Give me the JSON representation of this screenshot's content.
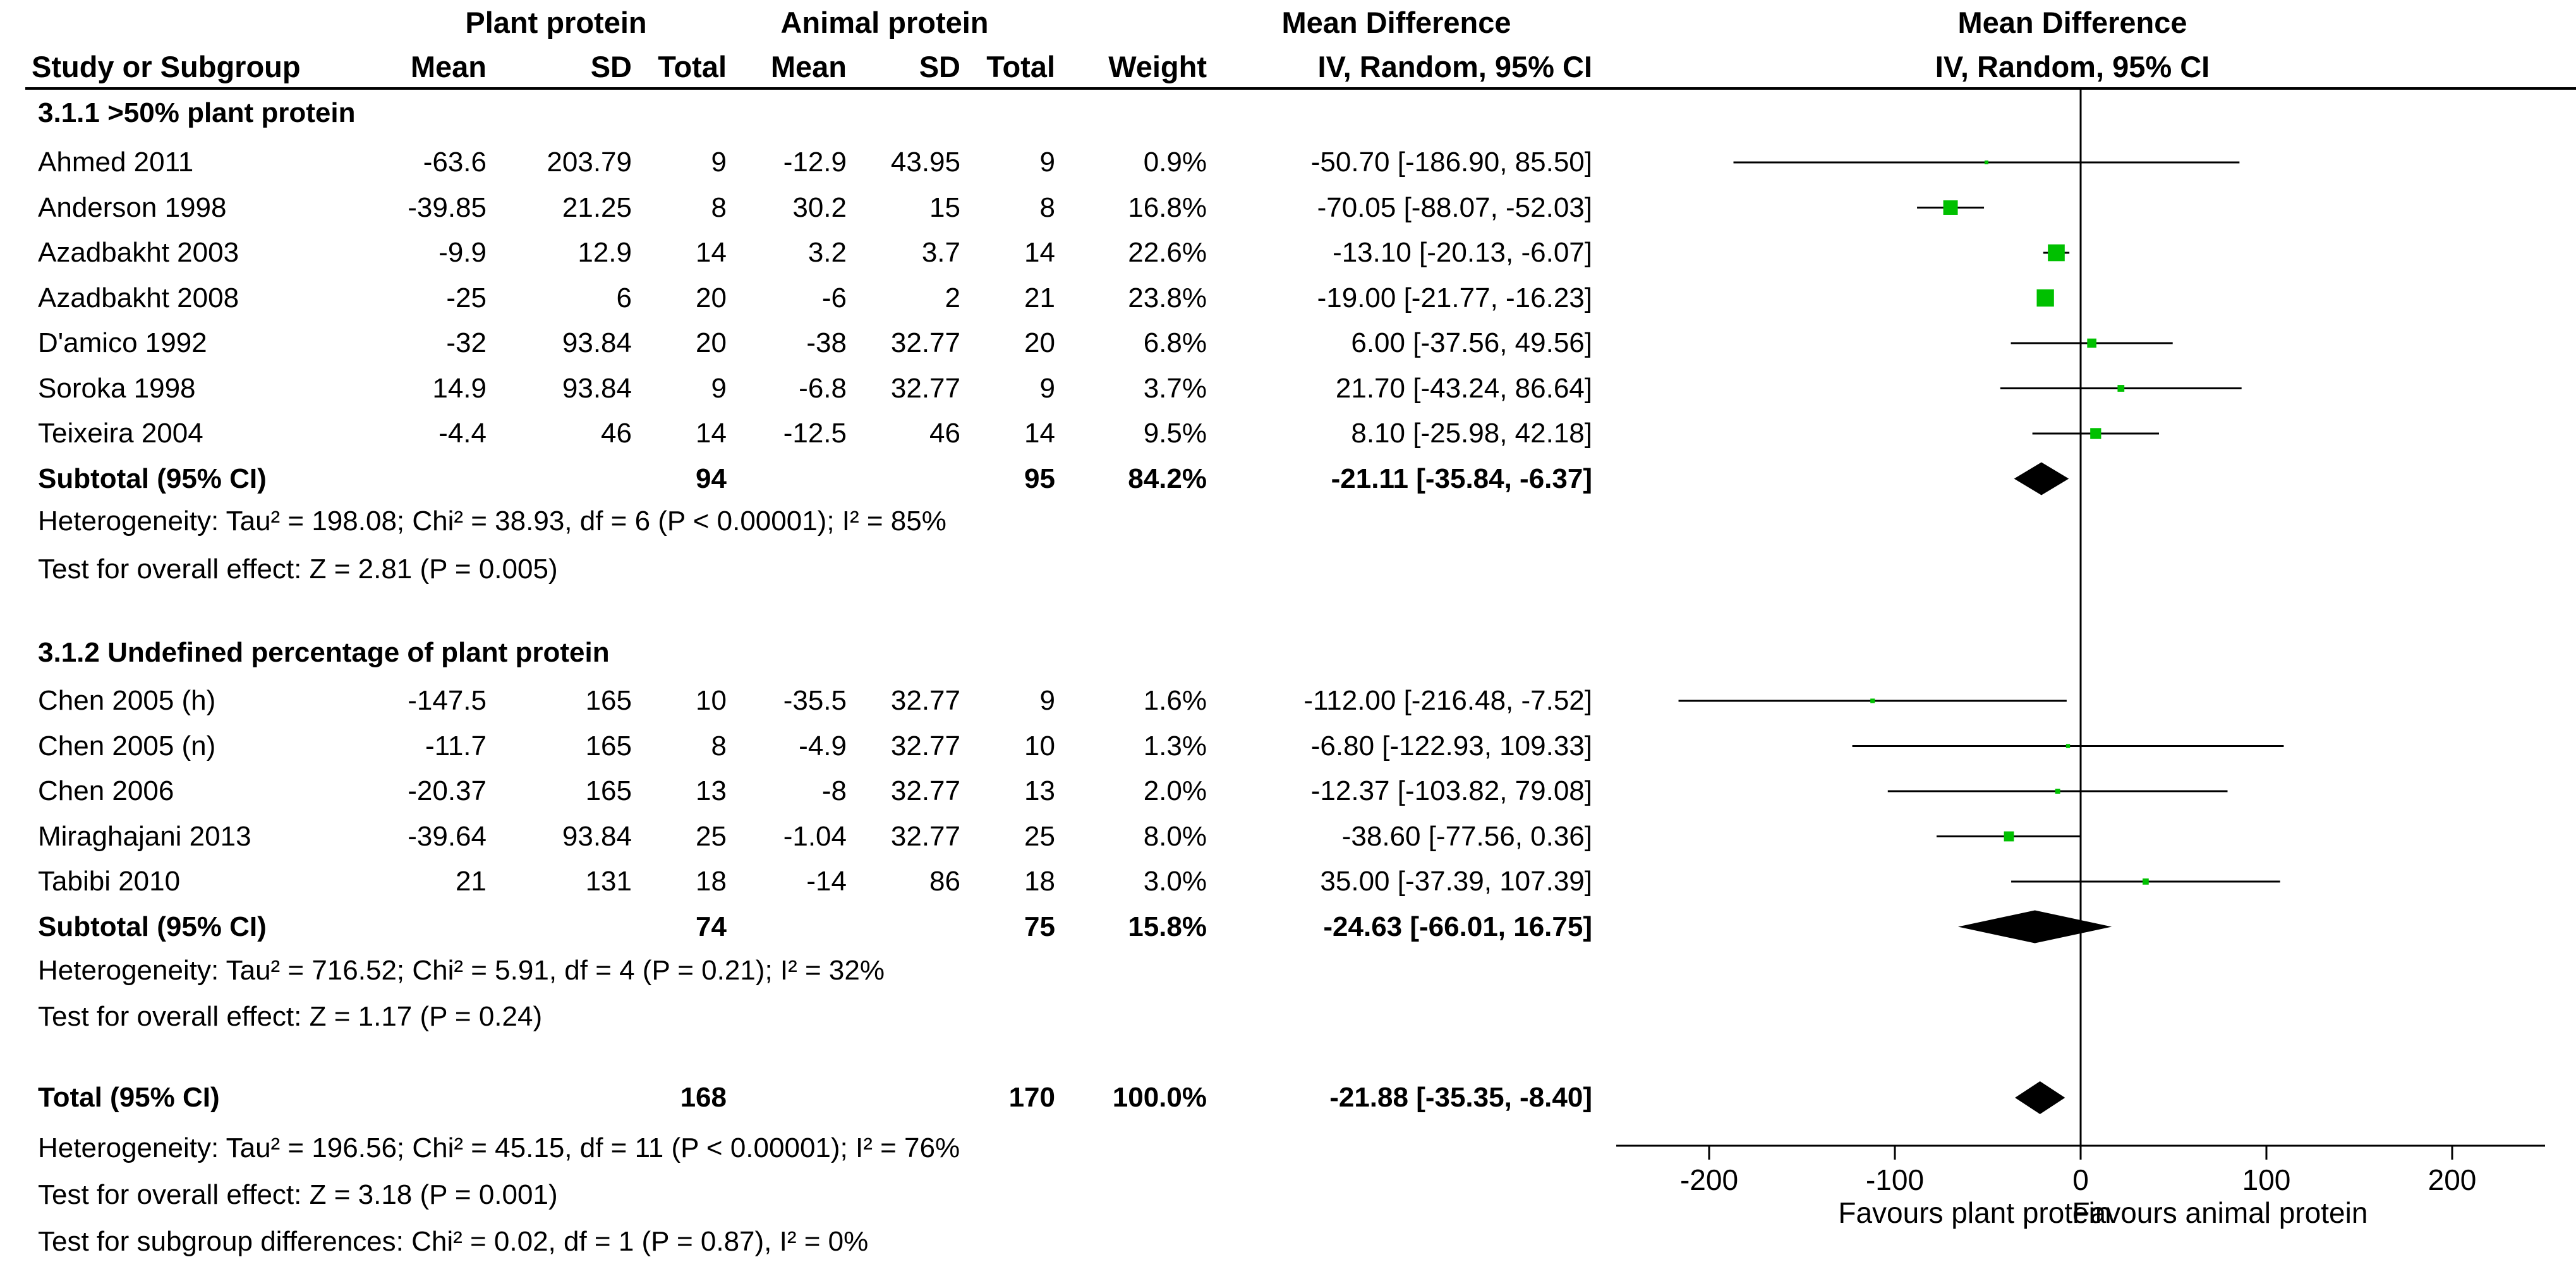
{
  "headers": {
    "group_plant": "Plant protein",
    "group_animal": "Animal protein",
    "group_md": "Mean Difference",
    "plot_title": "Mean Difference",
    "plot_method": "IV, Random, 95% CI",
    "study": "Study or Subgroup",
    "mean": "Mean",
    "sd": "SD",
    "total": "Total",
    "weight": "Weight",
    "md_method": "IV, Random, 95% CI"
  },
  "subgroups": [
    {
      "title": "3.1.1 >50% plant protein",
      "studies": [
        {
          "study": "Ahmed 2011",
          "pm": "-63.6",
          "psd": "203.79",
          "pn": "9",
          "am": "-12.9",
          "asd": "43.95",
          "an": "9",
          "weight": "0.9%",
          "ci": "-50.70 [-186.90, 85.50]"
        },
        {
          "study": "Anderson 1998",
          "pm": "-39.85",
          "psd": "21.25",
          "pn": "8",
          "am": "30.2",
          "asd": "15",
          "an": "8",
          "weight": "16.8%",
          "ci": "-70.05 [-88.07, -52.03]"
        },
        {
          "study": "Azadbakht 2003",
          "pm": "-9.9",
          "psd": "12.9",
          "pn": "14",
          "am": "3.2",
          "asd": "3.7",
          "an": "14",
          "weight": "22.6%",
          "ci": "-13.10 [-20.13, -6.07]"
        },
        {
          "study": "Azadbakht 2008",
          "pm": "-25",
          "psd": "6",
          "pn": "20",
          "am": "-6",
          "asd": "2",
          "an": "21",
          "weight": "23.8%",
          "ci": "-19.00 [-21.77, -16.23]"
        },
        {
          "study": "D'amico 1992",
          "pm": "-32",
          "psd": "93.84",
          "pn": "20",
          "am": "-38",
          "asd": "32.77",
          "an": "20",
          "weight": "6.8%",
          "ci": "6.00 [-37.56, 49.56]"
        },
        {
          "study": "Soroka 1998",
          "pm": "14.9",
          "psd": "93.84",
          "pn": "9",
          "am": "-6.8",
          "asd": "32.77",
          "an": "9",
          "weight": "3.7%",
          "ci": "21.70 [-43.24, 86.64]"
        },
        {
          "study": "Teixeira 2004",
          "pm": "-4.4",
          "psd": "46",
          "pn": "14",
          "am": "-12.5",
          "asd": "46",
          "an": "14",
          "weight": "9.5%",
          "ci": "8.10 [-25.98, 42.18]"
        }
      ],
      "subtotal": {
        "label": "Subtotal (95% CI)",
        "pn": "94",
        "an": "95",
        "weight": "84.2%",
        "ci": "-21.11 [-35.84, -6.37]"
      },
      "heterogeneity": "Heterogeneity: Tau² = 198.08; Chi² = 38.93, df = 6 (P < 0.00001); I² = 85%",
      "overall": "Test for overall effect: Z = 2.81 (P = 0.005)"
    },
    {
      "title": "3.1.2 Undefined percentage of plant protein",
      "studies": [
        {
          "study": "Chen 2005 (h)",
          "pm": "-147.5",
          "psd": "165",
          "pn": "10",
          "am": "-35.5",
          "asd": "32.77",
          "an": "9",
          "weight": "1.6%",
          "ci": "-112.00 [-216.48, -7.52]"
        },
        {
          "study": "Chen 2005 (n)",
          "pm": "-11.7",
          "psd": "165",
          "pn": "8",
          "am": "-4.9",
          "asd": "32.77",
          "an": "10",
          "weight": "1.3%",
          "ci": "-6.80 [-122.93, 109.33]"
        },
        {
          "study": "Chen 2006",
          "pm": "-20.37",
          "psd": "165",
          "pn": "13",
          "am": "-8",
          "asd": "32.77",
          "an": "13",
          "weight": "2.0%",
          "ci": "-12.37 [-103.82, 79.08]"
        },
        {
          "study": "Miraghajani 2013",
          "pm": "-39.64",
          "psd": "93.84",
          "pn": "25",
          "am": "-1.04",
          "asd": "32.77",
          "an": "25",
          "weight": "8.0%",
          "ci": "-38.60 [-77.56, 0.36]"
        },
        {
          "study": "Tabibi 2010",
          "pm": "21",
          "psd": "131",
          "pn": "18",
          "am": "-14",
          "asd": "86",
          "an": "18",
          "weight": "3.0%",
          "ci": "35.00 [-37.39, 107.39]"
        }
      ],
      "subtotal": {
        "label": "Subtotal (95% CI)",
        "pn": "74",
        "an": "75",
        "weight": "15.8%",
        "ci": "-24.63 [-66.01, 16.75]"
      },
      "heterogeneity": "Heterogeneity: Tau² = 716.52; Chi² = 5.91, df = 4 (P = 0.21); I² = 32%",
      "overall": "Test for overall effect: Z = 1.17 (P = 0.24)"
    }
  ],
  "total": {
    "label": "Total (95% CI)",
    "pn": "168",
    "an": "170",
    "weight": "100.0%",
    "ci": "-21.88 [-35.35, -8.40]",
    "heterogeneity": "Heterogeneity: Tau² = 196.56; Chi² = 45.15, df = 11 (P < 0.00001); I² = 76%",
    "overall": "Test for overall effect: Z = 3.18 (P = 0.001)",
    "subgroup_diff": "Test for subgroup differences: Chi² = 0.02, df = 1 (P = 0.87), I² = 0%"
  },
  "colors": {
    "marker": "#00c000",
    "diamond": "#000000",
    "line": "#000000"
  },
  "chart_data": {
    "type": "forest",
    "title": "Mean Difference",
    "subtitle": "IV, Random, 95% CI",
    "xlim": [
      -250,
      250
    ],
    "xticks": [
      -200,
      -100,
      0,
      100,
      200
    ],
    "xlabel_left": "Favours plant protein",
    "xlabel_right": "Favours animal protein",
    "rows": [
      {
        "study": "Ahmed 2011",
        "md": -50.7,
        "lo": -186.9,
        "hi": 85.5,
        "weight": 0.9,
        "kind": "study"
      },
      {
        "study": "Anderson 1998",
        "md": -70.05,
        "lo": -88.07,
        "hi": -52.03,
        "weight": 16.8,
        "kind": "study"
      },
      {
        "study": "Azadbakht 2003",
        "md": -13.1,
        "lo": -20.13,
        "hi": -6.07,
        "weight": 22.6,
        "kind": "study"
      },
      {
        "study": "Azadbakht 2008",
        "md": -19.0,
        "lo": -21.77,
        "hi": -16.23,
        "weight": 23.8,
        "kind": "study"
      },
      {
        "study": "D'amico 1992",
        "md": 6.0,
        "lo": -37.56,
        "hi": 49.56,
        "weight": 6.8,
        "kind": "study"
      },
      {
        "study": "Soroka 1998",
        "md": 21.7,
        "lo": -43.24,
        "hi": 86.64,
        "weight": 3.7,
        "kind": "study"
      },
      {
        "study": "Teixeira 2004",
        "md": 8.1,
        "lo": -25.98,
        "hi": 42.18,
        "weight": 9.5,
        "kind": "study"
      },
      {
        "study": "Subtotal (95% CI)",
        "md": -21.11,
        "lo": -35.84,
        "hi": -6.37,
        "weight": 84.2,
        "kind": "diamond"
      },
      {
        "study": "Chen 2005 (h)",
        "md": -112.0,
        "lo": -216.48,
        "hi": -7.52,
        "weight": 1.6,
        "kind": "study"
      },
      {
        "study": "Chen 2005 (n)",
        "md": -6.8,
        "lo": -122.93,
        "hi": 109.33,
        "weight": 1.3,
        "kind": "study"
      },
      {
        "study": "Chen 2006",
        "md": -12.37,
        "lo": -103.82,
        "hi": 79.08,
        "weight": 2.0,
        "kind": "study"
      },
      {
        "study": "Miraghajani 2013",
        "md": -38.6,
        "lo": -77.56,
        "hi": 0.36,
        "weight": 8.0,
        "kind": "study"
      },
      {
        "study": "Tabibi 2010",
        "md": 35.0,
        "lo": -37.39,
        "hi": 107.39,
        "weight": 3.0,
        "kind": "study"
      },
      {
        "study": "Subtotal (95% CI)",
        "md": -24.63,
        "lo": -66.01,
        "hi": 16.75,
        "weight": 15.8,
        "kind": "diamond"
      },
      {
        "study": "Total (95% CI)",
        "md": -21.88,
        "lo": -35.35,
        "hi": -8.4,
        "weight": 100.0,
        "kind": "diamond"
      }
    ]
  }
}
